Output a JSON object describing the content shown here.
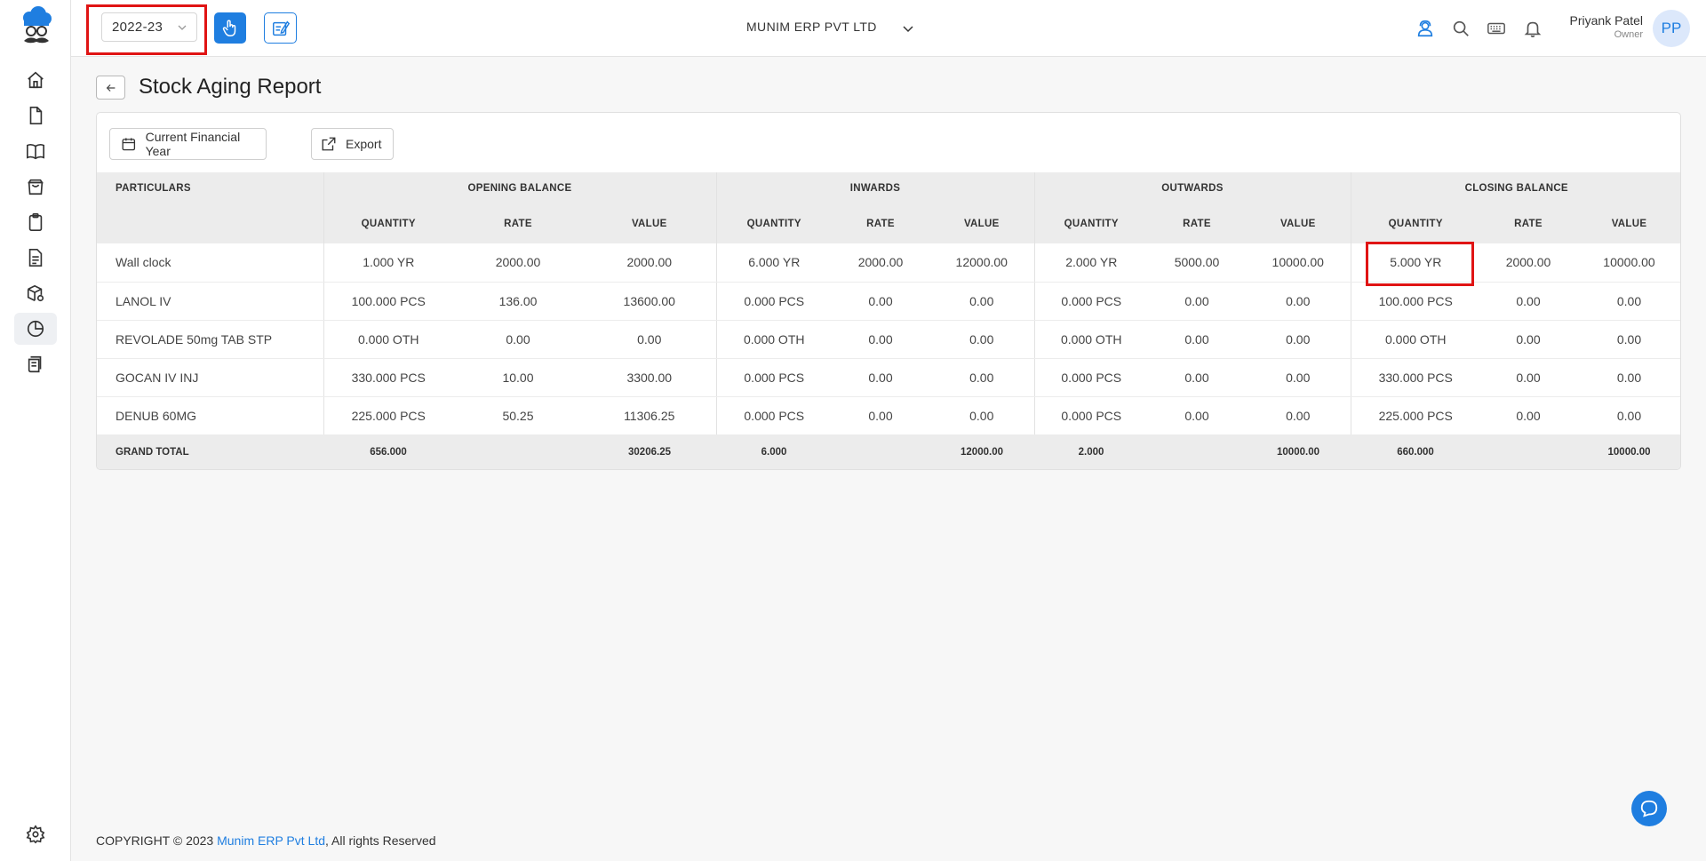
{
  "header": {
    "financial_year": "2022-23",
    "company_name": "MUNIM ERP PVT LTD",
    "user_name": "Priyank Patel",
    "user_role": "Owner",
    "avatar_initials": "PP"
  },
  "page": {
    "title": "Stock Aging Report"
  },
  "toolbar": {
    "period_label": "Current Financial Year",
    "export_label": "Export"
  },
  "table": {
    "particulars_header": "PARTICULARS",
    "groups": [
      "OPENING BALANCE",
      "INWARDS",
      "OUTWARDS",
      "CLOSING BALANCE"
    ],
    "sub_headers": [
      "QUANTITY",
      "RATE",
      "VALUE",
      "QUANTITY",
      "RATE",
      "VALUE",
      "QUANTITY",
      "RATE",
      "VALUE",
      "QUANTITY",
      "RATE",
      "VALUE"
    ],
    "rows": [
      [
        "Wall clock",
        "1.000 YR",
        "2000.00",
        "2000.00",
        "6.000 YR",
        "2000.00",
        "12000.00",
        "2.000 YR",
        "5000.00",
        "10000.00",
        "5.000 YR",
        "2000.00",
        "10000.00"
      ],
      [
        "LANOL IV",
        "100.000 PCS",
        "136.00",
        "13600.00",
        "0.000 PCS",
        "0.00",
        "0.00",
        "0.000 PCS",
        "0.00",
        "0.00",
        "100.000 PCS",
        "0.00",
        "0.00"
      ],
      [
        "REVOLADE 50mg TAB STP",
        "0.000 OTH",
        "0.00",
        "0.00",
        "0.000 OTH",
        "0.00",
        "0.00",
        "0.000 OTH",
        "0.00",
        "0.00",
        "0.000 OTH",
        "0.00",
        "0.00"
      ],
      [
        "GOCAN IV INJ",
        "330.000 PCS",
        "10.00",
        "3300.00",
        "0.000 PCS",
        "0.00",
        "0.00",
        "0.000 PCS",
        "0.00",
        "0.00",
        "330.000 PCS",
        "0.00",
        "0.00"
      ],
      [
        "DENUB 60MG",
        "225.000 PCS",
        "50.25",
        "11306.25",
        "0.000 PCS",
        "0.00",
        "0.00",
        "0.000 PCS",
        "0.00",
        "0.00",
        "225.000 PCS",
        "0.00",
        "0.00"
      ]
    ],
    "total": [
      "GRAND TOTAL",
      "656.000",
      "",
      "30206.25",
      "6.000",
      "",
      "12000.00",
      "2.000",
      "",
      "10000.00",
      "660.000",
      "",
      "10000.00"
    ]
  },
  "footer": {
    "prefix": "COPYRIGHT © 2023 ",
    "brand": "Munim ERP Pvt Ltd",
    "suffix": ", All rights Reserved"
  },
  "colors": {
    "accent": "#1f7ee0",
    "highlight": "#e01414"
  }
}
